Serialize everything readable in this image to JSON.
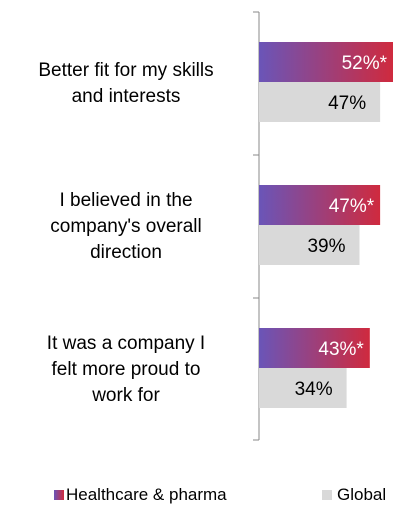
{
  "chart_data": {
    "type": "bar",
    "orientation": "horizontal",
    "title": "",
    "xlabel": "",
    "ylabel": "",
    "categories": [
      [
        "Better fit for my skills",
        "and interests"
      ],
      [
        "I believed in the",
        "company's overall",
        "direction"
      ],
      [
        "It was a company I",
        "felt more proud to",
        "work for"
      ]
    ],
    "series": [
      {
        "name": "Healthcare & pharma",
        "values": [
          52,
          47,
          43
        ],
        "labels": [
          "52%*",
          "47%*",
          "43%*"
        ],
        "color_start": "#6a55b8",
        "color_end": "#cf2a3e",
        "label_color": "#ffffff"
      },
      {
        "name": "Global",
        "values": [
          47,
          39,
          34
        ],
        "labels": [
          "47%",
          "39%",
          "34%"
        ],
        "color": "#d9d9d9",
        "label_color": "#000000"
      }
    ],
    "xlim": [
      0,
      52
    ],
    "grid": false,
    "legend_position": "bottom"
  }
}
